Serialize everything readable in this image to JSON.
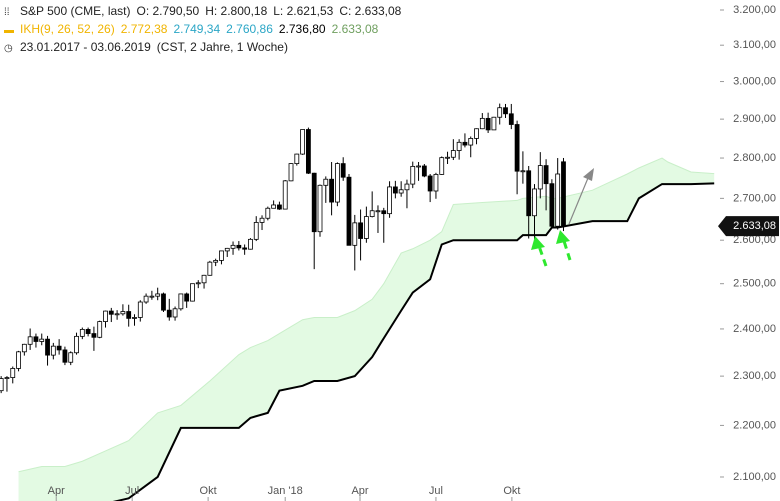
{
  "chart_data": {
    "type": "candlestick",
    "header": {
      "instrument": "S&P 500 (CME, last)",
      "ohlc_labels": [
        "O: 2.790,50",
        "H: 2.800,18",
        "L: 2.621,53",
        "C: 2.633,08"
      ],
      "indicator": "IKH(9, 26, 52, 26)",
      "indicator_values": [
        "2.772,38",
        "2.749,34",
        "2.760,86",
        "2.736,80",
        "2.633,08"
      ],
      "indicator_colors": [
        "#f0b400",
        "#2ba6c6",
        "#2ba6c6",
        "#000000",
        "#6f9f5f"
      ],
      "range": "23.01.2017 - 03.06.2019",
      "settings": "(CST, 2 Jahre, 1 Woche)"
    },
    "ohlc": [
      [
        2270,
        2300,
        2265,
        2295
      ],
      [
        2295,
        2300,
        2268,
        2297
      ],
      [
        2297,
        2320,
        2285,
        2316
      ],
      [
        2316,
        2353,
        2310,
        2351
      ],
      [
        2351,
        2368,
        2343,
        2367
      ],
      [
        2367,
        2401,
        2355,
        2383
      ],
      [
        2383,
        2390,
        2360,
        2373
      ],
      [
        2373,
        2390,
        2365,
        2378
      ],
      [
        2378,
        2385,
        2322,
        2344
      ],
      [
        2344,
        2370,
        2335,
        2363
      ],
      [
        2363,
        2378,
        2345,
        2355
      ],
      [
        2355,
        2362,
        2323,
        2329
      ],
      [
        2329,
        2352,
        2323,
        2349
      ],
      [
        2349,
        2392,
        2345,
        2384
      ],
      [
        2384,
        2403,
        2378,
        2399
      ],
      [
        2399,
        2403,
        2384,
        2390
      ],
      [
        2390,
        2405,
        2353,
        2382
      ],
      [
        2382,
        2418,
        2380,
        2416
      ],
      [
        2416,
        2440,
        2403,
        2439
      ],
      [
        2439,
        2446,
        2415,
        2432
      ],
      [
        2432,
        2441,
        2420,
        2433
      ],
      [
        2433,
        2454,
        2429,
        2438
      ],
      [
        2438,
        2453,
        2405,
        2423
      ],
      [
        2423,
        2432,
        2407,
        2425
      ],
      [
        2425,
        2463,
        2416,
        2459
      ],
      [
        2459,
        2478,
        2455,
        2472
      ],
      [
        2472,
        2484,
        2464,
        2472
      ],
      [
        2472,
        2491,
        2463,
        2477
      ],
      [
        2477,
        2480,
        2437,
        2441
      ],
      [
        2441,
        2466,
        2418,
        2426
      ],
      [
        2426,
        2449,
        2418,
        2444
      ],
      [
        2444,
        2478,
        2440,
        2477
      ],
      [
        2477,
        2480,
        2446,
        2461
      ],
      [
        2461,
        2500,
        2460,
        2500
      ],
      [
        2500,
        2508,
        2490,
        2502
      ],
      [
        2502,
        2520,
        2489,
        2519
      ],
      [
        2519,
        2552,
        2518,
        2549
      ],
      [
        2549,
        2557,
        2540,
        2553
      ],
      [
        2553,
        2576,
        2544,
        2575
      ],
      [
        2575,
        2582,
        2561,
        2581
      ],
      [
        2581,
        2597,
        2566,
        2588
      ],
      [
        2588,
        2598,
        2576,
        2582
      ],
      [
        2582,
        2590,
        2566,
        2579
      ],
      [
        2579,
        2605,
        2578,
        2602
      ],
      [
        2602,
        2657,
        2598,
        2642
      ],
      [
        2642,
        2659,
        2624,
        2652
      ],
      [
        2652,
        2680,
        2647,
        2676
      ],
      [
        2676,
        2695,
        2676,
        2684
      ],
      [
        2684,
        2692,
        2672,
        2674
      ],
      [
        2674,
        2745,
        2673,
        2743
      ],
      [
        2743,
        2787,
        2742,
        2786
      ],
      [
        2786,
        2811,
        2781,
        2810
      ],
      [
        2810,
        2873,
        2808,
        2873
      ],
      [
        2873,
        2878,
        2760,
        2762
      ],
      [
        2762,
        2763,
        2533,
        2620
      ],
      [
        2620,
        2734,
        2608,
        2732
      ],
      [
        2732,
        2754,
        2689,
        2747
      ],
      [
        2747,
        2790,
        2659,
        2691
      ],
      [
        2691,
        2789,
        2681,
        2786
      ],
      [
        2786,
        2802,
        2743,
        2752
      ],
      [
        2752,
        2760,
        2588,
        2588
      ],
      [
        2588,
        2660,
        2530,
        2641
      ],
      [
        2641,
        2673,
        2553,
        2604
      ],
      [
        2604,
        2680,
        2594,
        2656
      ],
      [
        2656,
        2717,
        2654,
        2670
      ],
      [
        2670,
        2683,
        2617,
        2670
      ],
      [
        2670,
        2677,
        2594,
        2663
      ],
      [
        2663,
        2742,
        2653,
        2728
      ],
      [
        2728,
        2743,
        2700,
        2713
      ],
      [
        2713,
        2742,
        2704,
        2721
      ],
      [
        2721,
        2746,
        2676,
        2735
      ],
      [
        2735,
        2791,
        2725,
        2779
      ],
      [
        2779,
        2790,
        2743,
        2780
      ],
      [
        2780,
        2785,
        2752,
        2755
      ],
      [
        2755,
        2760,
        2691,
        2718
      ],
      [
        2718,
        2763,
        2699,
        2759
      ],
      [
        2759,
        2804,
        2758,
        2801
      ],
      [
        2801,
        2816,
        2785,
        2802
      ],
      [
        2802,
        2848,
        2795,
        2819
      ],
      [
        2819,
        2848,
        2796,
        2840
      ],
      [
        2840,
        2863,
        2827,
        2833
      ],
      [
        2833,
        2855,
        2802,
        2850
      ],
      [
        2850,
        2876,
        2835,
        2875
      ],
      [
        2875,
        2916,
        2874,
        2902
      ],
      [
        2902,
        2917,
        2864,
        2872
      ],
      [
        2872,
        2906,
        2872,
        2905
      ],
      [
        2905,
        2941,
        2886,
        2930
      ],
      [
        2930,
        2940,
        2903,
        2914
      ],
      [
        2914,
        2940,
        2874,
        2886
      ],
      [
        2886,
        2896,
        2710,
        2767
      ],
      [
        2767,
        2817,
        2736,
        2768
      ],
      [
        2768,
        2780,
        2604,
        2658
      ],
      [
        2658,
        2735,
        2603,
        2723
      ],
      [
        2723,
        2815,
        2700,
        2781
      ],
      [
        2781,
        2797,
        2671,
        2736
      ],
      [
        2736,
        2747,
        2631,
        2633
      ],
      [
        2633,
        2800,
        2625,
        2760
      ],
      [
        2790.5,
        2800.18,
        2621.53,
        2633.08
      ]
    ],
    "ikh": {
      "x": [
        3,
        7,
        11,
        14,
        18,
        22,
        27,
        31,
        36,
        41,
        43,
        46,
        48,
        52,
        54,
        58,
        61,
        64,
        66,
        69,
        71,
        74,
        76,
        78,
        83,
        89,
        90,
        94,
        95,
        96,
        102,
        105,
        108,
        110,
        114,
        115,
        119,
        123
      ],
      "span_a": [
        2110,
        2120,
        2120,
        2130,
        2150,
        2170,
        2225,
        2240,
        2290,
        2345,
        2360,
        2375,
        2390,
        2420,
        2425,
        2425,
        2440,
        2465,
        2500,
        2570,
        2580,
        2600,
        2620,
        2685,
        2690,
        2695,
        2700,
        2705,
        2700,
        2700,
        2720,
        2740,
        2760,
        2775,
        2800,
        2790,
        2765,
        2760.86
      ],
      "span_b": [
        2050,
        2050,
        2050,
        2050,
        2050,
        2060,
        2100,
        2195,
        2195,
        2195,
        2215,
        2225,
        2270,
        2280,
        2290,
        2290,
        2300,
        2340,
        2380,
        2440,
        2480,
        2510,
        2590,
        2600,
        2600,
        2600,
        2612,
        2612,
        2630,
        2630,
        2645,
        2645,
        2645,
        2700,
        2735,
        2735,
        2735,
        2736.8
      ],
      "cloud_color": "#e3fae3",
      "span_a_color": "#c9efc9",
      "span_b_color": "#000000"
    },
    "up_color": "#ffffff",
    "down_color": "#000000",
    "last_price": {
      "value": 2633.08,
      "label": "2.633,08"
    },
    "log": true,
    "xlim": [
      -0.2,
      124
    ],
    "xticks": [
      {
        "value": 9.5,
        "label": "Apr"
      },
      {
        "value": 22.6,
        "label": "Jul"
      },
      {
        "value": 35.7,
        "label": "Okt"
      },
      {
        "value": 49,
        "label": "Jan '18"
      },
      {
        "value": 61.9,
        "label": "Apr"
      },
      {
        "value": 75,
        "label": "Jul"
      },
      {
        "value": 88.1,
        "label": "Okt"
      }
    ],
    "ylim": [
      2055,
      3229
    ],
    "yticks": [
      {
        "value": 2100,
        "label": "2.100,00"
      },
      {
        "value": 2200,
        "label": "2.200,00"
      },
      {
        "value": 2300,
        "label": "2.300,00"
      },
      {
        "value": 2400,
        "label": "2.400,00"
      },
      {
        "value": 2500,
        "label": "2.500,00"
      },
      {
        "value": 2600,
        "label": "2.600,00"
      },
      {
        "value": 2700,
        "label": "2.700,00"
      },
      {
        "value": 2800,
        "label": "2.800,00"
      },
      {
        "value": 2900,
        "label": "2.900,00"
      },
      {
        "value": 3000,
        "label": "3.000,00"
      },
      {
        "value": 3100,
        "label": "3.100,00"
      },
      {
        "value": 3200,
        "label": "3.200,00"
      }
    ]
  }
}
